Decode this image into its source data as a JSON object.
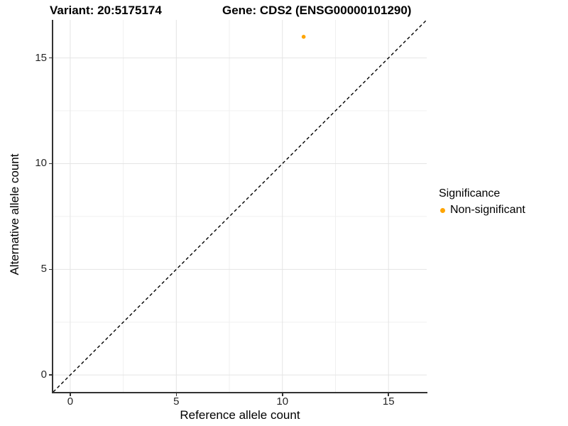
{
  "header": {
    "variant_title": "Variant: 20:5175174",
    "gene_title": "Gene: CDS2 (ENSG00000101290)"
  },
  "chart_data": {
    "type": "scatter",
    "title": "",
    "xlabel": "Reference allele count",
    "ylabel": "Alternative allele count",
    "xlim": [
      -0.8,
      16.8
    ],
    "ylim": [
      -0.8,
      16.8
    ],
    "x_major_ticks": [
      0,
      5,
      10,
      15
    ],
    "y_major_ticks": [
      0,
      5,
      10,
      15
    ],
    "x_minor_ticks": [
      2.5,
      7.5,
      12.5
    ],
    "y_minor_ticks": [
      2.5,
      7.5,
      12.5
    ],
    "grid": true,
    "legend_position": "right",
    "points": [
      {
        "x": 11,
        "y": 16,
        "series": "Non-significant",
        "color": "#FFA500"
      }
    ],
    "reference_line": {
      "kind": "identity",
      "equation": "y = x",
      "style": "dashed",
      "color": "#000000"
    }
  },
  "legend": {
    "title": "Significance",
    "entries": [
      {
        "label": "Non-significant",
        "color": "#FFA500"
      }
    ]
  },
  "style": {
    "point_color": "#FFA500",
    "grid_major_color": "#E4E4E4",
    "grid_minor_color": "#F0F0F0",
    "axis_line_color": "#333333",
    "tick_label_color": "#262626"
  }
}
